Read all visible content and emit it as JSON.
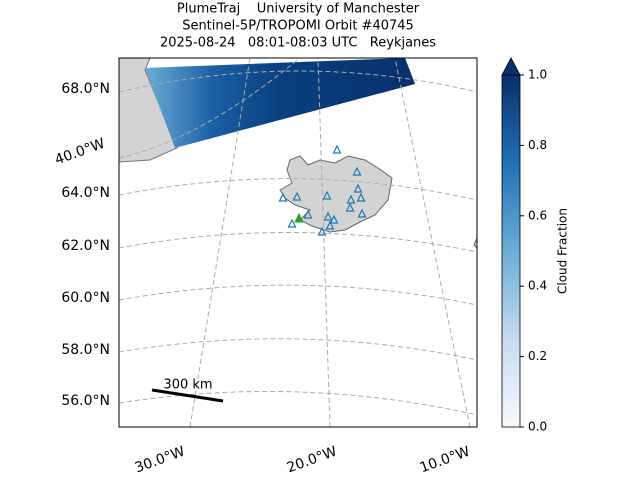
{
  "header": {
    "title_lines": [
      "PlumeTraj    University of Manchester",
      "Sentinel-5P/TROPOMI Orbit #40745",
      "2025-08-24   08:01-08:03 UTC   Reykjanes"
    ]
  },
  "map": {
    "lat_labels": [
      "68.0°N",
      "64.0°N",
      "62.0°N",
      "60.0°N",
      "58.0°N",
      "56.0°N"
    ],
    "lon_labels": [
      "40.0°W",
      "30.0°W",
      "20.0°W",
      "10.0°W"
    ],
    "scale_bar": "300 km"
  },
  "colorbar": {
    "label": "Cloud Fraction",
    "range": [
      0,
      1
    ],
    "ticks": [
      {
        "value": 0,
        "label": "0.0"
      },
      {
        "value": 0.2,
        "label": "0.2"
      },
      {
        "value": 0.4,
        "label": "0.4"
      },
      {
        "value": 0.6,
        "label": "0.6"
      },
      {
        "value": 0.8,
        "label": "0.8"
      },
      {
        "value": 1,
        "label": "1.0"
      }
    ]
  }
}
